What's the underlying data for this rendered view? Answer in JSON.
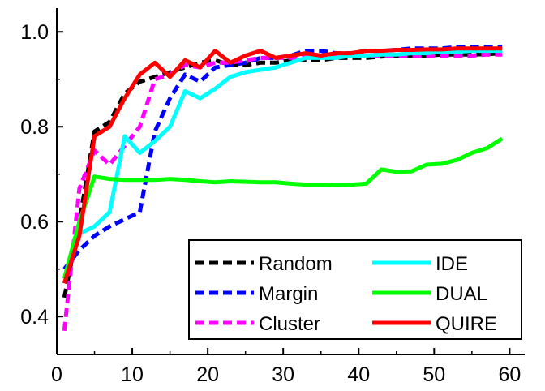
{
  "chart_data": {
    "type": "line",
    "title": "",
    "xlabel": "",
    "ylabel": "",
    "xlim": [
      0,
      62
    ],
    "ylim": [
      0.32,
      1.05
    ],
    "xticks": [
      0,
      10,
      20,
      30,
      40,
      50,
      60
    ],
    "yticks": [
      0.4,
      0.6,
      0.8,
      1.0
    ],
    "xtick_labels": [
      "0",
      "10",
      "20",
      "30",
      "40",
      "50",
      "60"
    ],
    "ytick_labels": [
      "0.4",
      "0.6",
      "0.8",
      "1.0"
    ],
    "grid": false,
    "legend": {
      "placement": "bottom-right",
      "columns": 2
    },
    "series": [
      {
        "name": "Random",
        "color": "#000000",
        "dash": "dashed",
        "x": [
          1,
          3,
          5,
          7,
          9,
          11,
          13,
          15,
          17,
          19,
          21,
          23,
          25,
          27,
          29,
          31,
          33,
          35,
          37,
          39,
          41,
          43,
          45,
          47,
          49,
          51,
          53,
          55,
          57,
          59
        ],
        "y": [
          0.44,
          0.6,
          0.79,
          0.81,
          0.87,
          0.895,
          0.905,
          0.915,
          0.925,
          0.935,
          0.94,
          0.93,
          0.93,
          0.935,
          0.935,
          0.94,
          0.94,
          0.94,
          0.945,
          0.945,
          0.945,
          0.948,
          0.95,
          0.95,
          0.95,
          0.952,
          0.952,
          0.952,
          0.953,
          0.955
        ]
      },
      {
        "name": "Margin",
        "color": "#0000ff",
        "dash": "dashed",
        "x": [
          1,
          3,
          5,
          7,
          9,
          11,
          13,
          15,
          17,
          19,
          21,
          23,
          25,
          27,
          29,
          31,
          33,
          35,
          37,
          39,
          41,
          43,
          45,
          47,
          49,
          51,
          53,
          55,
          57,
          59
        ],
        "y": [
          0.5,
          0.54,
          0.57,
          0.59,
          0.605,
          0.62,
          0.79,
          0.86,
          0.91,
          0.895,
          0.925,
          0.93,
          0.935,
          0.945,
          0.945,
          0.95,
          0.96,
          0.96,
          0.955,
          0.955,
          0.96,
          0.96,
          0.962,
          0.965,
          0.965,
          0.965,
          0.968,
          0.968,
          0.968,
          0.968
        ]
      },
      {
        "name": "Cluster",
        "color": "#ff00ff",
        "dash": "dashed",
        "x": [
          1,
          3,
          5,
          7,
          9,
          11,
          13,
          15,
          17,
          19,
          21,
          23,
          25,
          27,
          29,
          31,
          33,
          35,
          37,
          39,
          41,
          43,
          45,
          47,
          49,
          51,
          53,
          55,
          57,
          59
        ],
        "y": [
          0.37,
          0.67,
          0.75,
          0.72,
          0.76,
          0.8,
          0.9,
          0.91,
          0.93,
          0.925,
          0.935,
          0.935,
          0.94,
          0.945,
          0.945,
          0.945,
          0.948,
          0.948,
          0.948,
          0.95,
          0.95,
          0.95,
          0.95,
          0.95,
          0.95,
          0.95,
          0.95,
          0.95,
          0.952,
          0.952
        ]
      },
      {
        "name": "IDE",
        "color": "#00ffff",
        "dash": "solid",
        "x": [
          1,
          3,
          5,
          7,
          9,
          11,
          13,
          15,
          17,
          19,
          21,
          23,
          25,
          27,
          29,
          31,
          33,
          35,
          37,
          39,
          41,
          43,
          45,
          47,
          49,
          51,
          53,
          55,
          57,
          59
        ],
        "y": [
          0.48,
          0.575,
          0.59,
          0.62,
          0.78,
          0.745,
          0.77,
          0.8,
          0.875,
          0.86,
          0.88,
          0.905,
          0.915,
          0.92,
          0.925,
          0.935,
          0.945,
          0.945,
          0.945,
          0.95,
          0.95,
          0.952,
          0.952,
          0.955,
          0.955,
          0.958,
          0.958,
          0.96,
          0.96,
          0.96
        ]
      },
      {
        "name": "DUAL",
        "color": "#00ff00",
        "dash": "solid",
        "x": [
          1,
          3,
          5,
          7,
          9,
          11,
          13,
          15,
          17,
          19,
          21,
          23,
          25,
          27,
          29,
          31,
          33,
          35,
          37,
          39,
          41,
          43,
          45,
          47,
          49,
          51,
          53,
          55,
          57,
          59
        ],
        "y": [
          0.48,
          0.6,
          0.695,
          0.69,
          0.688,
          0.688,
          0.688,
          0.69,
          0.688,
          0.685,
          0.683,
          0.685,
          0.684,
          0.683,
          0.683,
          0.68,
          0.678,
          0.678,
          0.677,
          0.678,
          0.68,
          0.71,
          0.705,
          0.706,
          0.72,
          0.722,
          0.73,
          0.745,
          0.755,
          0.775
        ]
      },
      {
        "name": "QUIRE",
        "color": "#ff0000",
        "dash": "solid",
        "x": [
          1,
          3,
          5,
          7,
          9,
          11,
          13,
          15,
          17,
          19,
          21,
          23,
          25,
          27,
          29,
          31,
          33,
          35,
          37,
          39,
          41,
          43,
          45,
          47,
          49,
          51,
          53,
          55,
          57,
          59
        ],
        "y": [
          0.47,
          0.57,
          0.78,
          0.8,
          0.86,
          0.91,
          0.935,
          0.905,
          0.94,
          0.925,
          0.96,
          0.935,
          0.95,
          0.96,
          0.945,
          0.95,
          0.955,
          0.95,
          0.955,
          0.955,
          0.96,
          0.96,
          0.962,
          0.962,
          0.963,
          0.963,
          0.965,
          0.965,
          0.965,
          0.965
        ]
      }
    ]
  }
}
